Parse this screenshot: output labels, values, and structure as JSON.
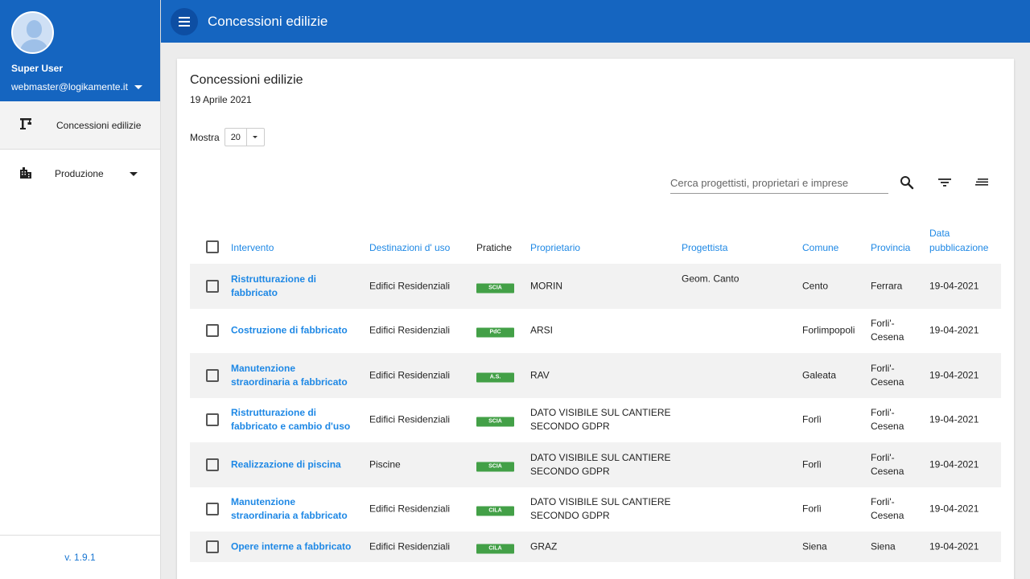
{
  "app": {
    "title": "Concessioni edilizie",
    "version": "v. 1.9.1"
  },
  "user": {
    "name": "Super User",
    "email": "webmaster@logikamente.it"
  },
  "nav": [
    {
      "label": "Concessioni edilizie",
      "icon": "crane-icon"
    },
    {
      "label": "Produzione",
      "icon": "building-icon"
    }
  ],
  "card": {
    "title": "Concessioni edilizie",
    "date": "19 Aprile 2021",
    "show_label": "Mostra",
    "show_value": "20"
  },
  "search": {
    "placeholder": "Cerca progettisti, proprietari e imprese"
  },
  "columns": {
    "intervento": "Intervento",
    "destinazioni": "Destinazioni d' uso",
    "pratiche": "Pratiche",
    "proprietario": "Proprietario",
    "progettista": "Progettista",
    "comune": "Comune",
    "provincia": "Provincia",
    "data_line1": "Data",
    "data_line2": "pubblicazione"
  },
  "rows": [
    {
      "intervento": "Ristrutturazione di fabbricato",
      "destinazioni": "Edifici Residenziali",
      "pratiche": "SCIA",
      "proprietario": "MORIN",
      "progettista": "Geom. Canto",
      "comune": "Cento",
      "provincia": "Ferrara",
      "data": "19-04-2021"
    },
    {
      "intervento": "Costruzione di fabbricato",
      "destinazioni": "Edifici Residenziali",
      "pratiche": "PdC",
      "proprietario": "ARSI",
      "progettista": "",
      "comune": "Forlimpopoli",
      "provincia": "Forli'-Cesena",
      "data": "19-04-2021"
    },
    {
      "intervento": "Manutenzione straordinaria a fabbricato",
      "destinazioni": "Edifici Residenziali",
      "pratiche": "A.S.",
      "proprietario": "RAV",
      "progettista": "",
      "comune": "Galeata",
      "provincia": "Forli'-Cesena",
      "data": "19-04-2021"
    },
    {
      "intervento": "Ristrutturazione di fabbricato e cambio d'uso",
      "destinazioni": "Edifici Residenziali",
      "pratiche": "SCIA",
      "proprietario": "DATO VISIBILE SUL CANTIERE SECONDO GDPR",
      "progettista": "",
      "comune": "Forlì",
      "provincia": "Forli'-Cesena",
      "data": "19-04-2021"
    },
    {
      "intervento": "Realizzazione di piscina",
      "destinazioni": "Piscine",
      "pratiche": "SCIA",
      "proprietario": "DATO VISIBILE SUL CANTIERE SECONDO GDPR",
      "progettista": "",
      "comune": "Forlì",
      "provincia": "Forli'-Cesena",
      "data": "19-04-2021"
    },
    {
      "intervento": "Manutenzione straordinaria a fabbricato",
      "destinazioni": "Edifici Residenziali",
      "pratiche": "CILA",
      "proprietario": "DATO VISIBILE SUL CANTIERE SECONDO GDPR",
      "progettista": "",
      "comune": "Forlì",
      "provincia": "Forli'-Cesena",
      "data": "19-04-2021"
    },
    {
      "intervento": "Opere interne a fabbricato",
      "destinazioni": "Edifici Residenziali",
      "pratiche": "CILA",
      "proprietario": "GRAZ",
      "progettista": "",
      "comune": "Siena",
      "provincia": "Siena",
      "data": "19-04-2021"
    }
  ],
  "colors": {
    "primary": "#1565c0",
    "link": "#1e88e5",
    "badge": "#43a047"
  }
}
